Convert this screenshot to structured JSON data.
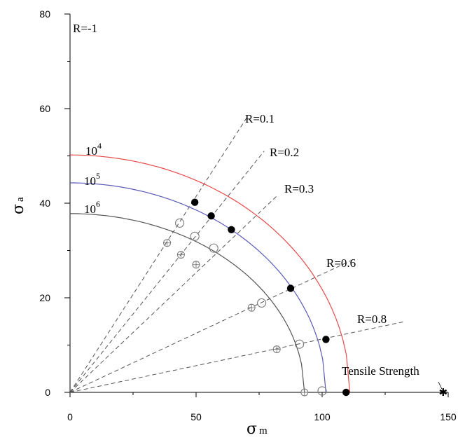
{
  "chart_data": {
    "type": "line",
    "xlim": [
      0,
      150
    ],
    "ylim": [
      0,
      80
    ],
    "x_ticks": [
      0,
      50,
      100,
      150
    ],
    "y_ticks": [
      0,
      20,
      40,
      60,
      80
    ],
    "xlabel": {
      "main": "σ",
      "sub": "m"
    },
    "ylabel": {
      "main": "σ",
      "sub": "a"
    },
    "grid": false,
    "series": [
      {
        "name": "10^4",
        "label_base": "10",
        "label_exp": "4",
        "color": "#e84a4a",
        "a0": 50.2,
        "b": 111,
        "points": [
          {
            "x": 49.5,
            "y": 40.2
          },
          {
            "x": 56,
            "y": 37.3
          },
          {
            "x": 64,
            "y": 34.4
          },
          {
            "x": 87.5,
            "y": 22
          },
          {
            "x": 101.5,
            "y": 11.2
          },
          {
            "x": 109.5,
            "y": 0
          }
        ],
        "marker": "filled"
      },
      {
        "name": "10^5",
        "label_base": "10",
        "label_exp": "5",
        "color": "#5a5ab8",
        "a0": 44.3,
        "b": 101.5,
        "points": [
          {
            "x": 43.5,
            "y": 35.8
          },
          {
            "x": 49.5,
            "y": 33
          },
          {
            "x": 57,
            "y": 30.5
          },
          {
            "x": 76,
            "y": 18.9
          },
          {
            "x": 91,
            "y": 10.2
          },
          {
            "x": 100,
            "y": 0.3
          }
        ],
        "marker": "open"
      },
      {
        "name": "10^6",
        "label_base": "10",
        "label_exp": "6",
        "color": "#555555",
        "a0": 37.8,
        "b": 93,
        "points": [
          {
            "x": 38.5,
            "y": 31.6
          },
          {
            "x": 44,
            "y": 29.1
          },
          {
            "x": 50,
            "y": 27
          },
          {
            "x": 72,
            "y": 17.9
          },
          {
            "x": 82,
            "y": 9.1
          },
          {
            "x": 93,
            "y": 0
          }
        ],
        "marker": "crossed"
      }
    ],
    "stress_ratio_lines": [
      {
        "label": "R=-1",
        "end": [
          0,
          80
        ]
      },
      {
        "label": "R=0.1",
        "end": [
          70,
          58
        ]
      },
      {
        "label": "R=0.2",
        "end": [
          77,
          51
        ]
      },
      {
        "label": "R=0.3",
        "end": [
          82,
          41.5
        ]
      },
      {
        "label": "R=0.6",
        "end": [
          112,
          28
        ]
      },
      {
        "label": "R=0.8",
        "end": [
          133,
          15
        ]
      }
    ],
    "tensile_strength": {
      "label": "Tensile Strength",
      "x": 148,
      "y": 0
    }
  }
}
